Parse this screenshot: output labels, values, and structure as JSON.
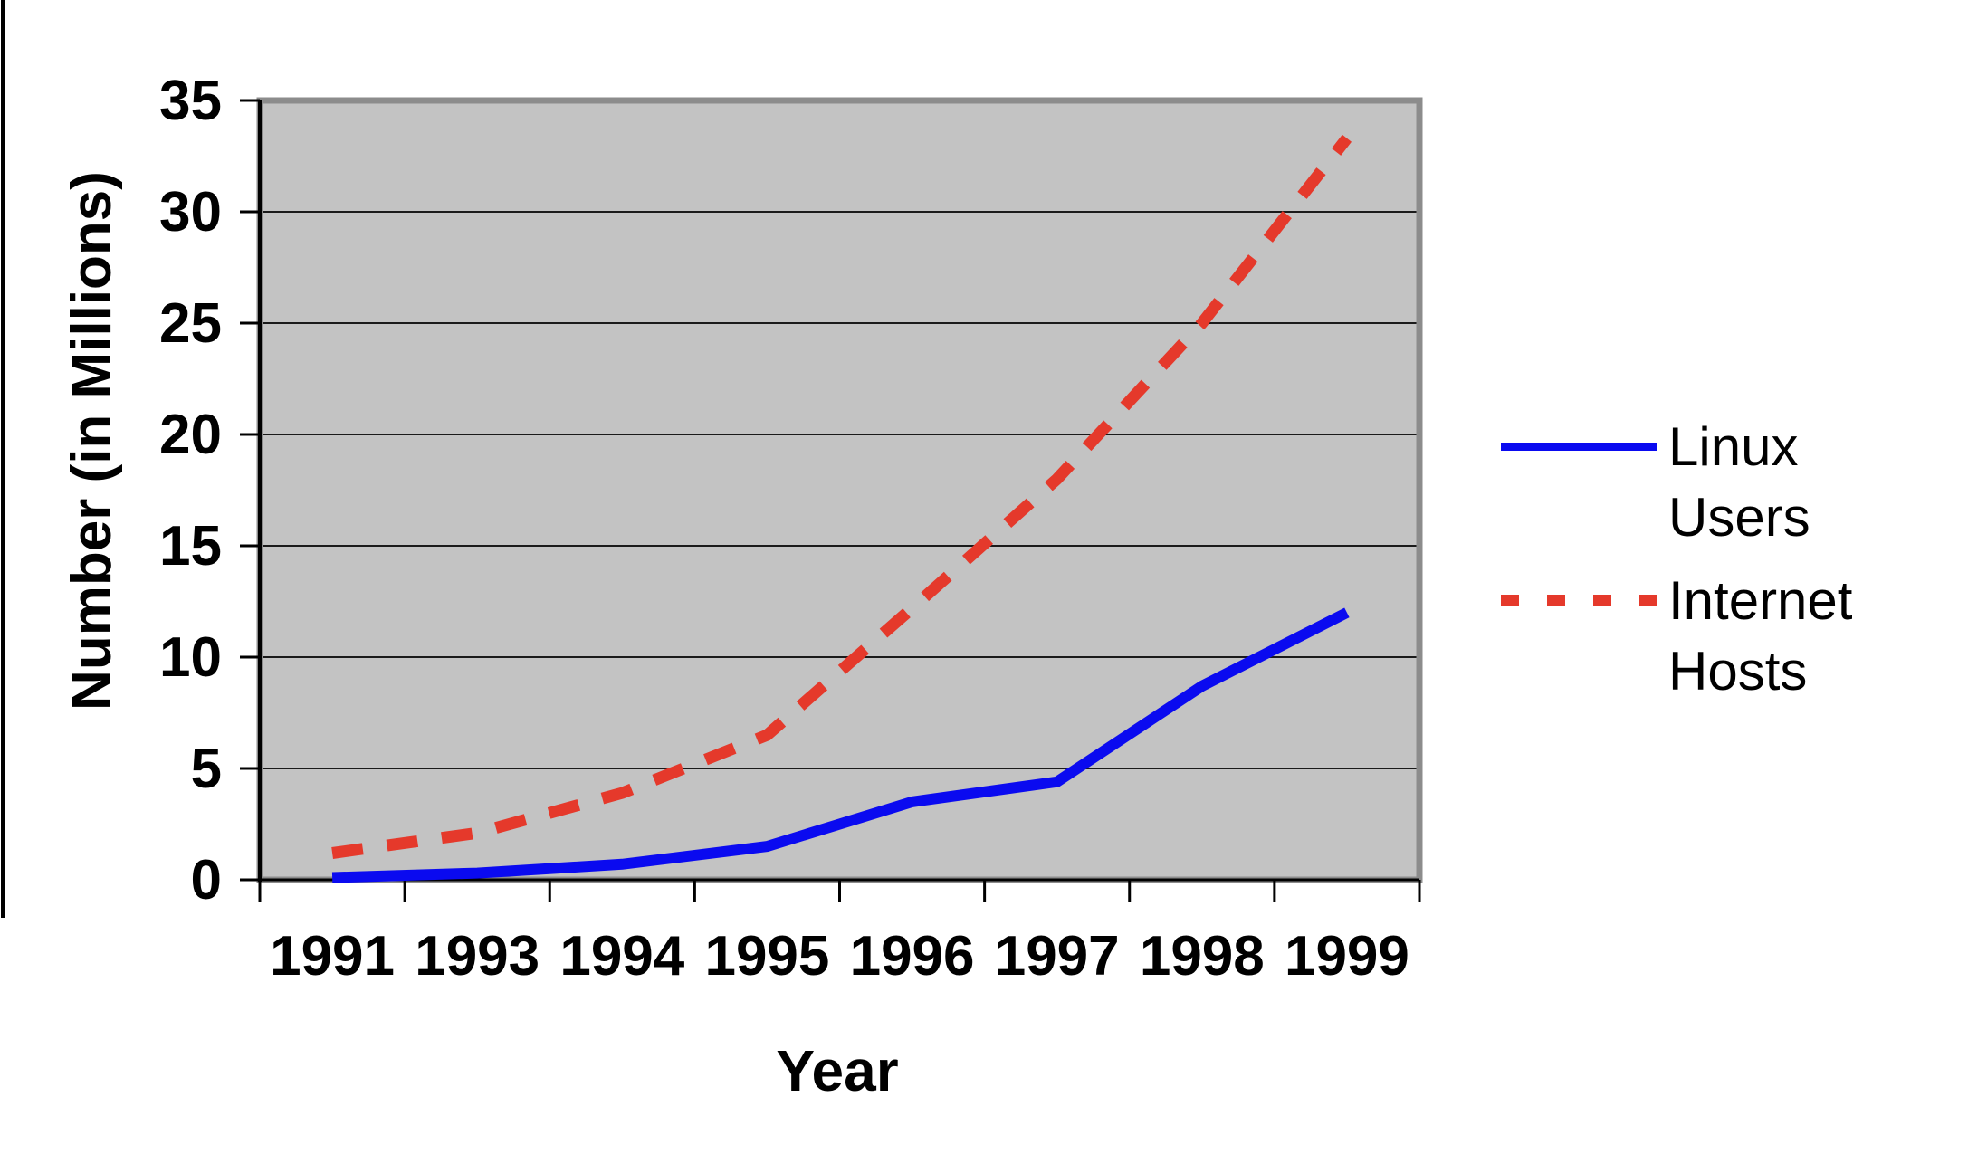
{
  "chart_data": {
    "type": "line",
    "title": "",
    "xlabel": "Year",
    "ylabel": "Number (in Millions)",
    "categories": [
      "1991",
      "1993",
      "1994",
      "1995",
      "1996",
      "1997",
      "1998",
      "1999"
    ],
    "series": [
      {
        "name": "Linux Users",
        "color": "#0a0af0",
        "style": "solid",
        "values": [
          0.1,
          0.3,
          0.7,
          1.5,
          3.5,
          4.4,
          8.7,
          12
        ]
      },
      {
        "name": "Internet Hosts",
        "color": "#e5392b",
        "style": "dashed",
        "values": [
          1.2,
          2.1,
          3.9,
          6.5,
          12.2,
          18,
          25,
          33.3
        ]
      }
    ],
    "ylim": [
      0,
      35
    ],
    "yticks": [
      0,
      5,
      10,
      15,
      20,
      25,
      30,
      35
    ],
    "grid": true,
    "legend_position": "right",
    "plot_bg": "#c3c3c3",
    "plot_border": "#8c8c8c",
    "grid_color": "#1a1a1a",
    "axis_color": "#000000"
  }
}
